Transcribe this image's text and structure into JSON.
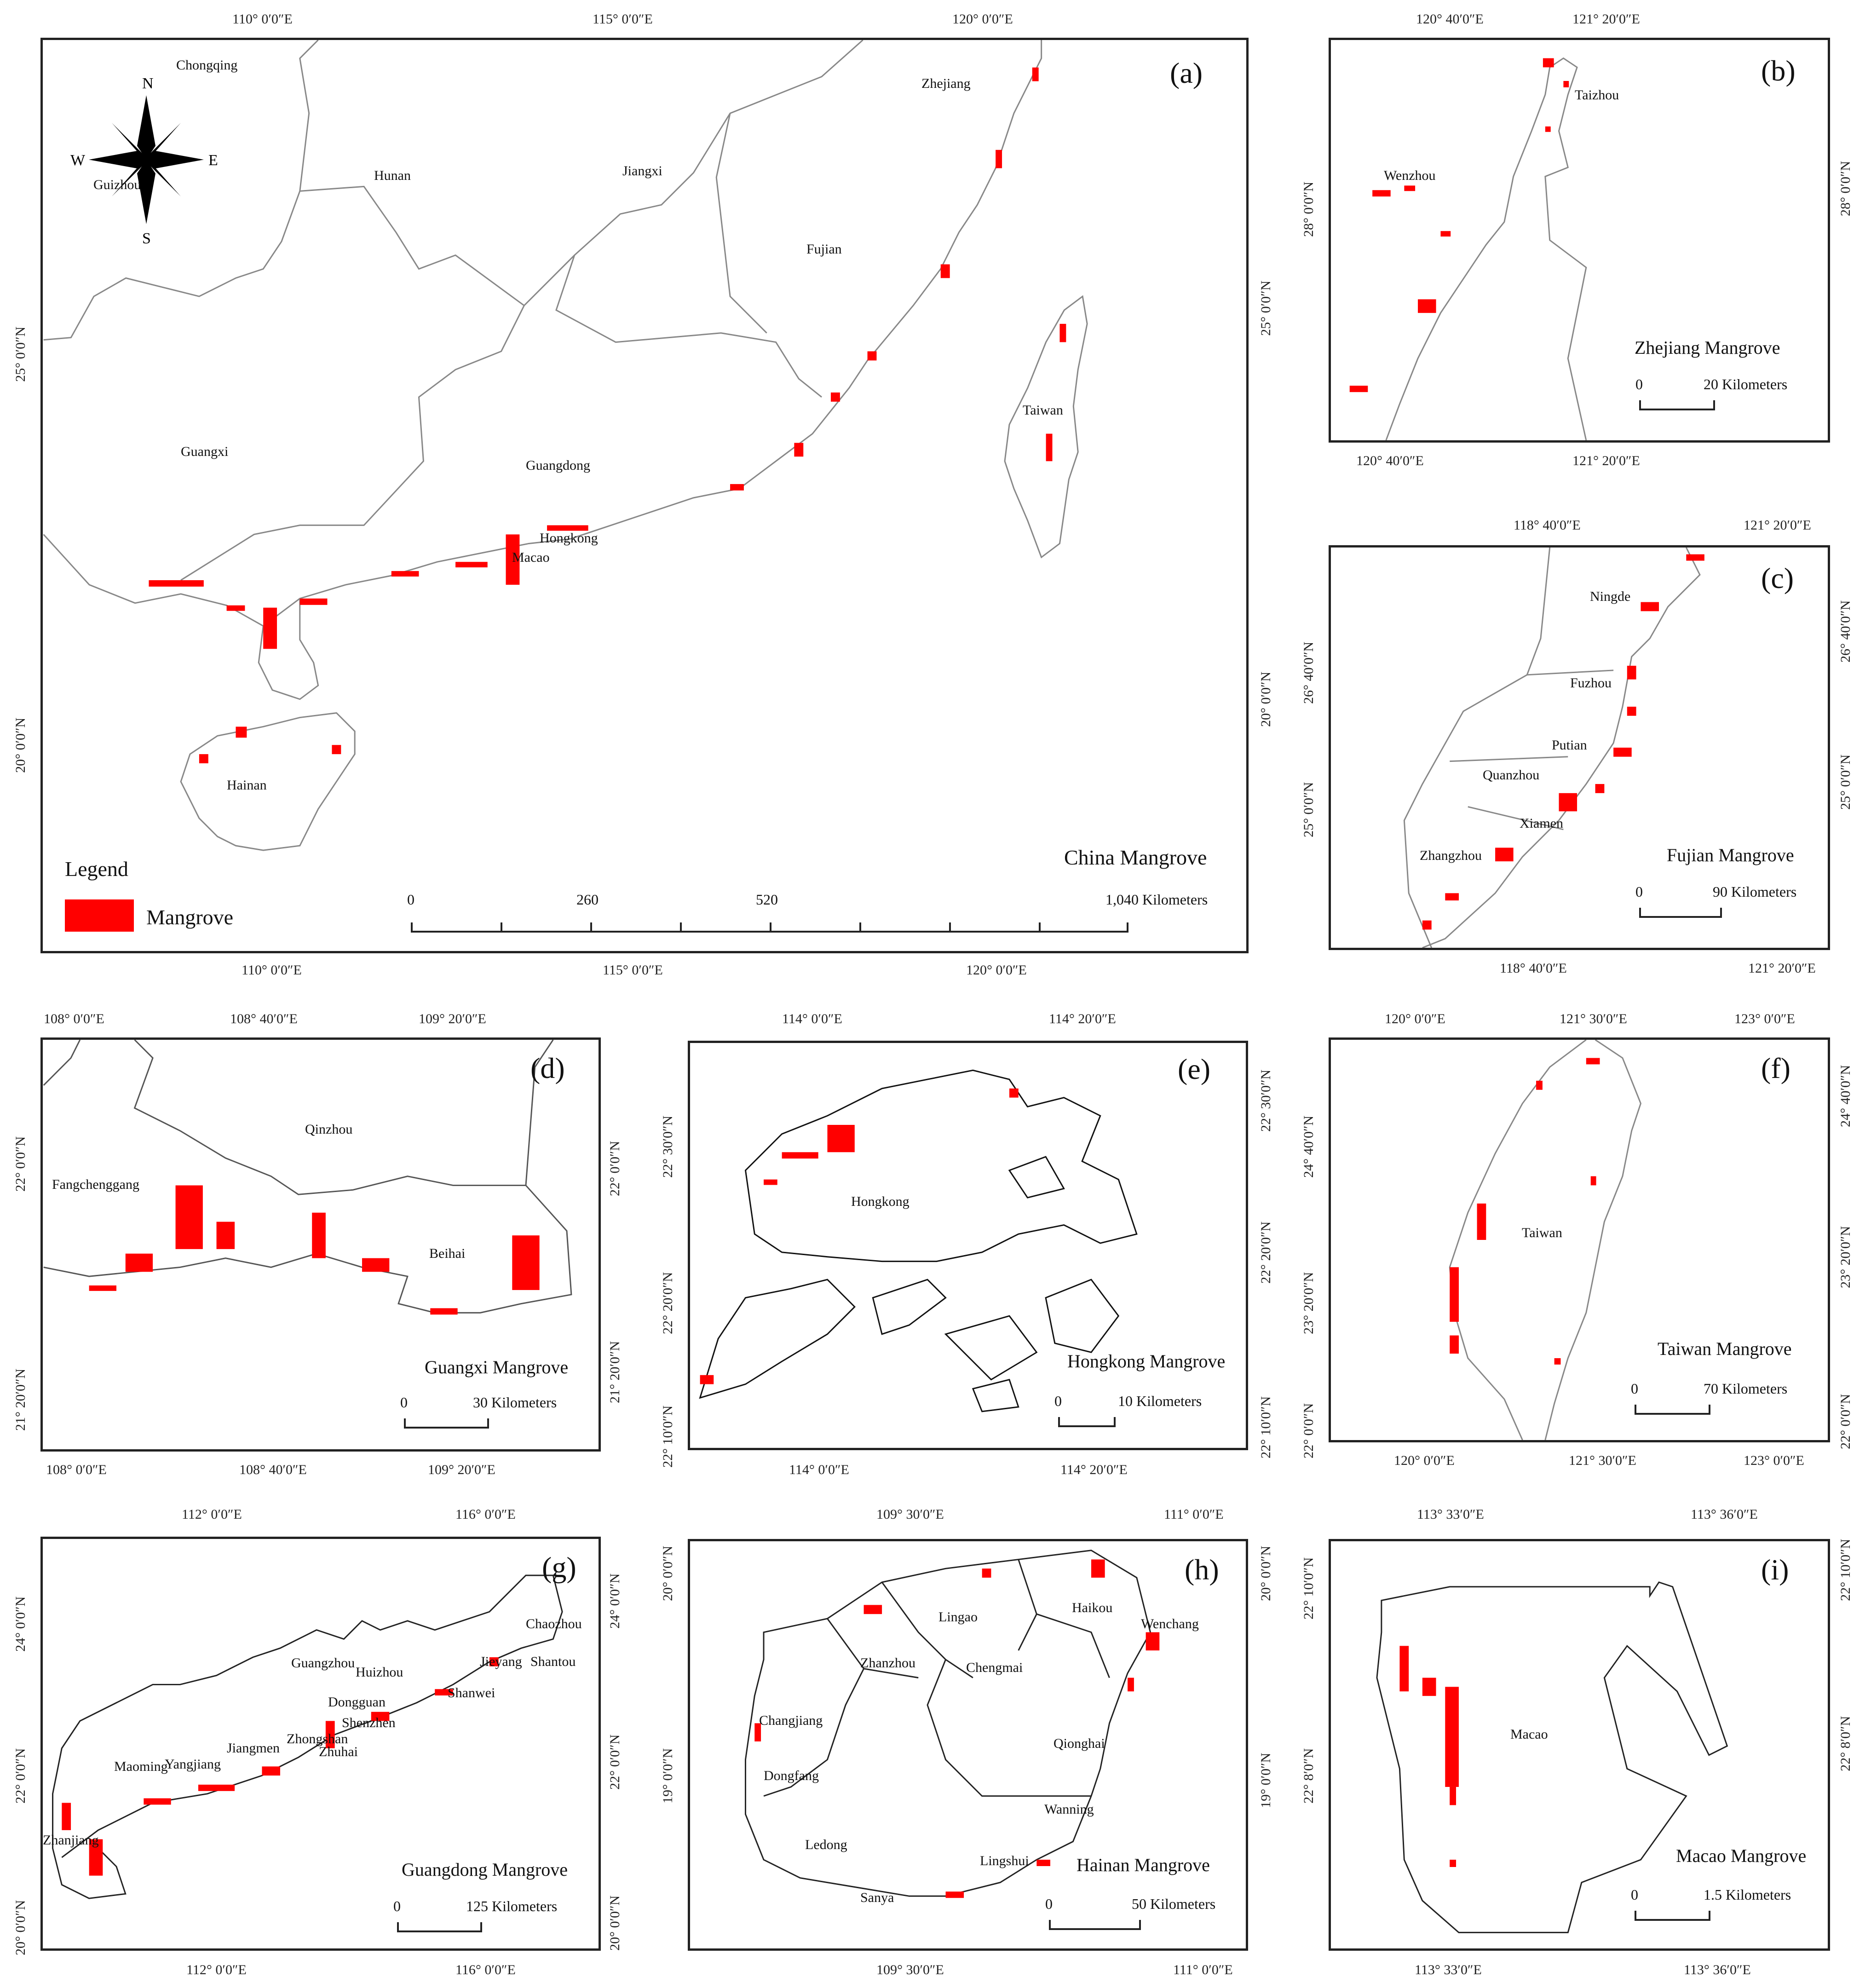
{
  "colors": {
    "mangrove": "#ff0000",
    "border": "#555555",
    "frame": "#222222"
  },
  "legend": {
    "title": "Legend",
    "item": "Mangrove"
  },
  "compass": {
    "n": "N",
    "s": "S",
    "e": "E",
    "w": "W"
  },
  "panels": {
    "a": {
      "tag": "(a)",
      "title": "China Mangrove",
      "top_ticks": [
        "110° 0′0″E",
        "115° 0′0″E",
        "120° 0′0″E"
      ],
      "bottom_ticks": [
        "110° 0′0″E",
        "115° 0′0″E",
        "120° 0′0″E"
      ],
      "left_ticks": [
        "25° 0′0″N",
        "20° 0′0″N"
      ],
      "right_ticks": [
        "25° 0′0″N",
        "20° 0′0″N"
      ],
      "places": {
        "chongqing": "Chongqing",
        "guizhou": "Guizhou",
        "hunan": "Hunan",
        "jiangxi": "Jiangxi",
        "zhejiang": "Zhejiang",
        "fujian": "Fujian",
        "guangxi": "Guangxi",
        "guangdong": "Guangdong",
        "hongkong": "Hongkong",
        "macao": "Macao",
        "taiwan": "Taiwan",
        "hainan": "Hainan"
      },
      "scale": {
        "l0": "0",
        "l1": "260",
        "l2": "520",
        "l3": "1,040 Kilometers"
      }
    },
    "b": {
      "tag": "(b)",
      "title": "Zhejiang Mangrove",
      "top_ticks": [
        "120° 40′0″E",
        "121° 20′0″E"
      ],
      "bottom_ticks": [
        "120° 40′0″E",
        "121° 20′0″E"
      ],
      "left_ticks": [
        "28° 0′0″N"
      ],
      "right_ticks": [
        "28° 0′0″N"
      ],
      "places": {
        "taizhou": "Taizhou",
        "wenzhou": "Wenzhou"
      },
      "scale": {
        "l0": "0",
        "l1": "20 Kilometers"
      }
    },
    "c": {
      "tag": "(c)",
      "title": "Fujian Mangrove",
      "top_ticks": [
        "118° 40′0″E",
        "121° 20′0″E"
      ],
      "bottom_ticks": [
        "118° 40′0″E",
        "121° 20′0″E"
      ],
      "left_ticks": [
        "26° 40′0″N",
        "25° 0′0″N"
      ],
      "right_ticks": [
        "26° 40′0″N",
        "25° 0′0″N"
      ],
      "places": {
        "ningde": "Ningde",
        "fuzhou": "Fuzhou",
        "putian": "Putian",
        "quanzhou": "Quanzhou",
        "xiamen": "Xiamen",
        "zhangzhou": "Zhangzhou"
      },
      "scale": {
        "l0": "0",
        "l1": "90 Kilometers"
      }
    },
    "d": {
      "tag": "(d)",
      "title": "Guangxi Mangrove",
      "top_ticks": [
        "108° 0′0″E",
        "108° 40′0″E",
        "109° 20′0″E"
      ],
      "bottom_ticks": [
        "108° 0′0″E",
        "108° 40′0″E",
        "109° 20′0″E"
      ],
      "left_ticks": [
        "22° 0′0″N",
        "21° 20′0″N"
      ],
      "right_ticks": [
        "22° 0′0″N",
        "21° 20′0″N"
      ],
      "places": {
        "qinzhou": "Qinzhou",
        "fangchenggang": "Fangchenggang",
        "beihai": "Beihai"
      },
      "scale": {
        "l0": "0",
        "l1": "30 Kilometers"
      }
    },
    "e": {
      "tag": "(e)",
      "title": "Hongkong Mangrove",
      "top_ticks": [
        "114° 0′0″E",
        "114° 20′0″E"
      ],
      "bottom_ticks": [
        "114° 0′0″E",
        "114° 20′0″E"
      ],
      "left_ticks": [
        "22° 30′0″N",
        "22° 20′0″N",
        "22° 10′0″N"
      ],
      "right_ticks": [
        "22° 30′0″N",
        "22° 20′0″N",
        "22° 10′0″N"
      ],
      "places": {
        "hongkong": "Hongkong"
      },
      "scale": {
        "l0": "0",
        "l1": "10 Kilometers"
      }
    },
    "f": {
      "tag": "(f)",
      "title": "Taiwan Mangrove",
      "top_ticks": [
        "120° 0′0″E",
        "121° 30′0″E",
        "123° 0′0″E"
      ],
      "bottom_ticks": [
        "120° 0′0″E",
        "121° 30′0″E",
        "123° 0′0″E"
      ],
      "left_ticks": [
        "24° 40′0″N",
        "23° 20′0″N",
        "22° 0′0″N"
      ],
      "right_ticks": [
        "24° 40′0″N",
        "23° 20′0″N",
        "22° 0′0″N"
      ],
      "places": {
        "taiwan": "Taiwan"
      },
      "scale": {
        "l0": "0",
        "l1": "70 Kilometers"
      }
    },
    "g": {
      "tag": "(g)",
      "title": "Guangdong Mangrove",
      "top_ticks": [
        "112° 0′0″E",
        "116° 0′0″E"
      ],
      "bottom_ticks": [
        "112° 0′0″E",
        "116° 0′0″E"
      ],
      "left_ticks": [
        "24° 0′0″N",
        "22° 0′0″N",
        "20° 0′0″N"
      ],
      "right_ticks": [
        "24° 0′0″N",
        "22° 0′0″N",
        "20° 0′0″N"
      ],
      "places": {
        "chaozhou": "Chaozhou",
        "jieyang": "Jieyang",
        "shantou": "Shantou",
        "guangzhou": "Guangzhou",
        "huizhou": "Huizhou",
        "shanwei": "Shanwei",
        "dongguan": "Dongguan",
        "shenzhen": "Shenzhen",
        "zhongshan": "Zhongshan",
        "zhuhai": "Zhuhai",
        "maoming": "Maoming",
        "yangjiang": "Yangjiang",
        "jiangmen": "Jiangmen",
        "zhanjiang": "Zhanjiang"
      },
      "scale": {
        "l0": "0",
        "l1": "125 Kilometers"
      }
    },
    "h": {
      "tag": "(h)",
      "title": "Hainan Mangrove",
      "top_ticks": [
        "109° 30′0″E",
        "111° 0′0″E"
      ],
      "bottom_ticks": [
        "109° 30′0″E",
        "111° 0′0″E"
      ],
      "left_ticks": [
        "20° 0′0″N",
        "19° 0′0″N"
      ],
      "right_ticks": [
        "20° 0′0″N",
        "19° 0′0″N"
      ],
      "places": {
        "haikou": "Haikou",
        "wenchang": "Wenchang",
        "lingao": "Lingao",
        "zhanzhou": "Zhanzhou",
        "chengmai": "Chengmai",
        "changjiang": "Changjiang",
        "qionghai": "Qionghai",
        "dongfang": "Dongfang",
        "wanning": "Wanning",
        "ledong": "Ledong",
        "lingshui": "Lingshui",
        "sanya": "Sanya"
      },
      "scale": {
        "l0": "0",
        "l1": "50 Kilometers"
      }
    },
    "i": {
      "tag": "(i)",
      "title": "Macao Mangrove",
      "top_ticks": [
        "113° 33′0″E",
        "113° 36′0″E"
      ],
      "bottom_ticks": [
        "113° 33′0″E",
        "113° 36′0″E"
      ],
      "left_ticks": [
        "22° 10′0″N",
        "22° 8′0″N"
      ],
      "right_ticks": [
        "22° 10′0″N",
        "22° 8′0″N"
      ],
      "places": {
        "macao": "Macao"
      },
      "scale": {
        "l0": "0",
        "l1": "1.5 Kilometers"
      }
    }
  }
}
